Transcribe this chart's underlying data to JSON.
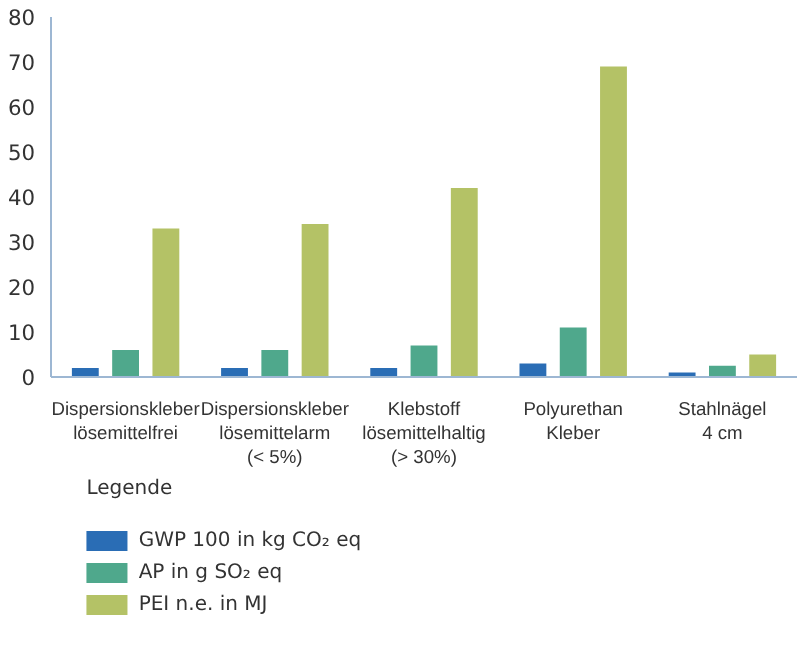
{
  "chart_data": {
    "type": "bar",
    "categories": [
      "Dispersionskleber\nlösemittelfrei",
      "Dispersionskleber\nlösemittelarm\n(< 5%)",
      "Klebstoff\nlösemittelhaltig\n(> 30%)",
      "Polyurethan\nKleber",
      "Stahlnägel\n4 cm"
    ],
    "series": [
      {
        "name": "GWP 100 in kg CO₂ eq",
        "color": "#2a6db5",
        "values": [
          2,
          2,
          2,
          3,
          1
        ]
      },
      {
        "name": "AP in g SO₂ eq",
        "color": "#4fa88c",
        "values": [
          6,
          6,
          7,
          11,
          2.5
        ]
      },
      {
        "name": "PEI n.e. in MJ",
        "color": "#b4c266",
        "values": [
          33,
          34,
          42,
          69,
          5
        ]
      }
    ],
    "ylim": [
      0,
      80
    ],
    "yticks": [
      0,
      10,
      20,
      30,
      40,
      50,
      60,
      70,
      80
    ],
    "legend_title": "Legende",
    "legend": "bottom",
    "grid": false
  }
}
